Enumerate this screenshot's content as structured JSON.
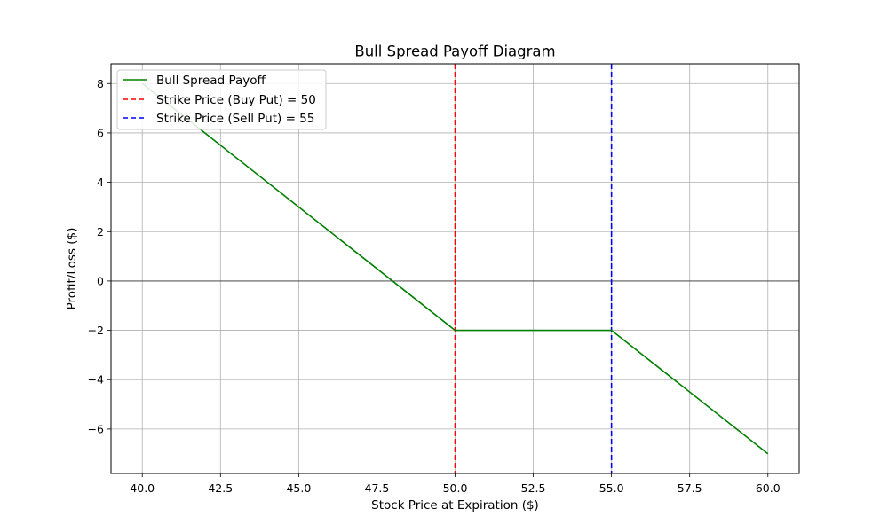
{
  "chart_data": {
    "type": "line",
    "title": "Bull Spread Payoff Diagram",
    "xlabel": "Stock Price at Expiration ($)",
    "ylabel": "Profit/Loss ($)",
    "xlim": [
      39,
      61
    ],
    "ylim": [
      -7.8,
      8.8
    ],
    "xticks": [
      40.0,
      42.5,
      45.0,
      47.5,
      50.0,
      52.5,
      55.0,
      57.5,
      60.0
    ],
    "xtick_labels": [
      "40.0",
      "42.5",
      "45.0",
      "47.5",
      "50.0",
      "52.5",
      "55.0",
      "57.5",
      "60.0"
    ],
    "yticks": [
      8,
      6,
      4,
      2,
      0,
      -2,
      -4,
      -6
    ],
    "ytick_labels": [
      "8",
      "6",
      "4",
      "2",
      "0",
      "−2",
      "−4",
      "−6"
    ],
    "grid": true,
    "zero_line": true,
    "legend_position": "upper-left",
    "series": [
      {
        "name": "Bull Spread Payoff",
        "style": "solid",
        "color": "#008000",
        "x": [
          40,
          50,
          55,
          60
        ],
        "y": [
          8,
          -2,
          -2,
          -7
        ]
      }
    ],
    "vlines": [
      {
        "name": "Strike Price (Buy Put) = 50",
        "x": 50,
        "style": "dashed",
        "color": "#ff0000"
      },
      {
        "name": "Strike Price (Sell Put) = 55",
        "x": 55,
        "style": "dashed",
        "color": "#0000ff"
      }
    ]
  }
}
